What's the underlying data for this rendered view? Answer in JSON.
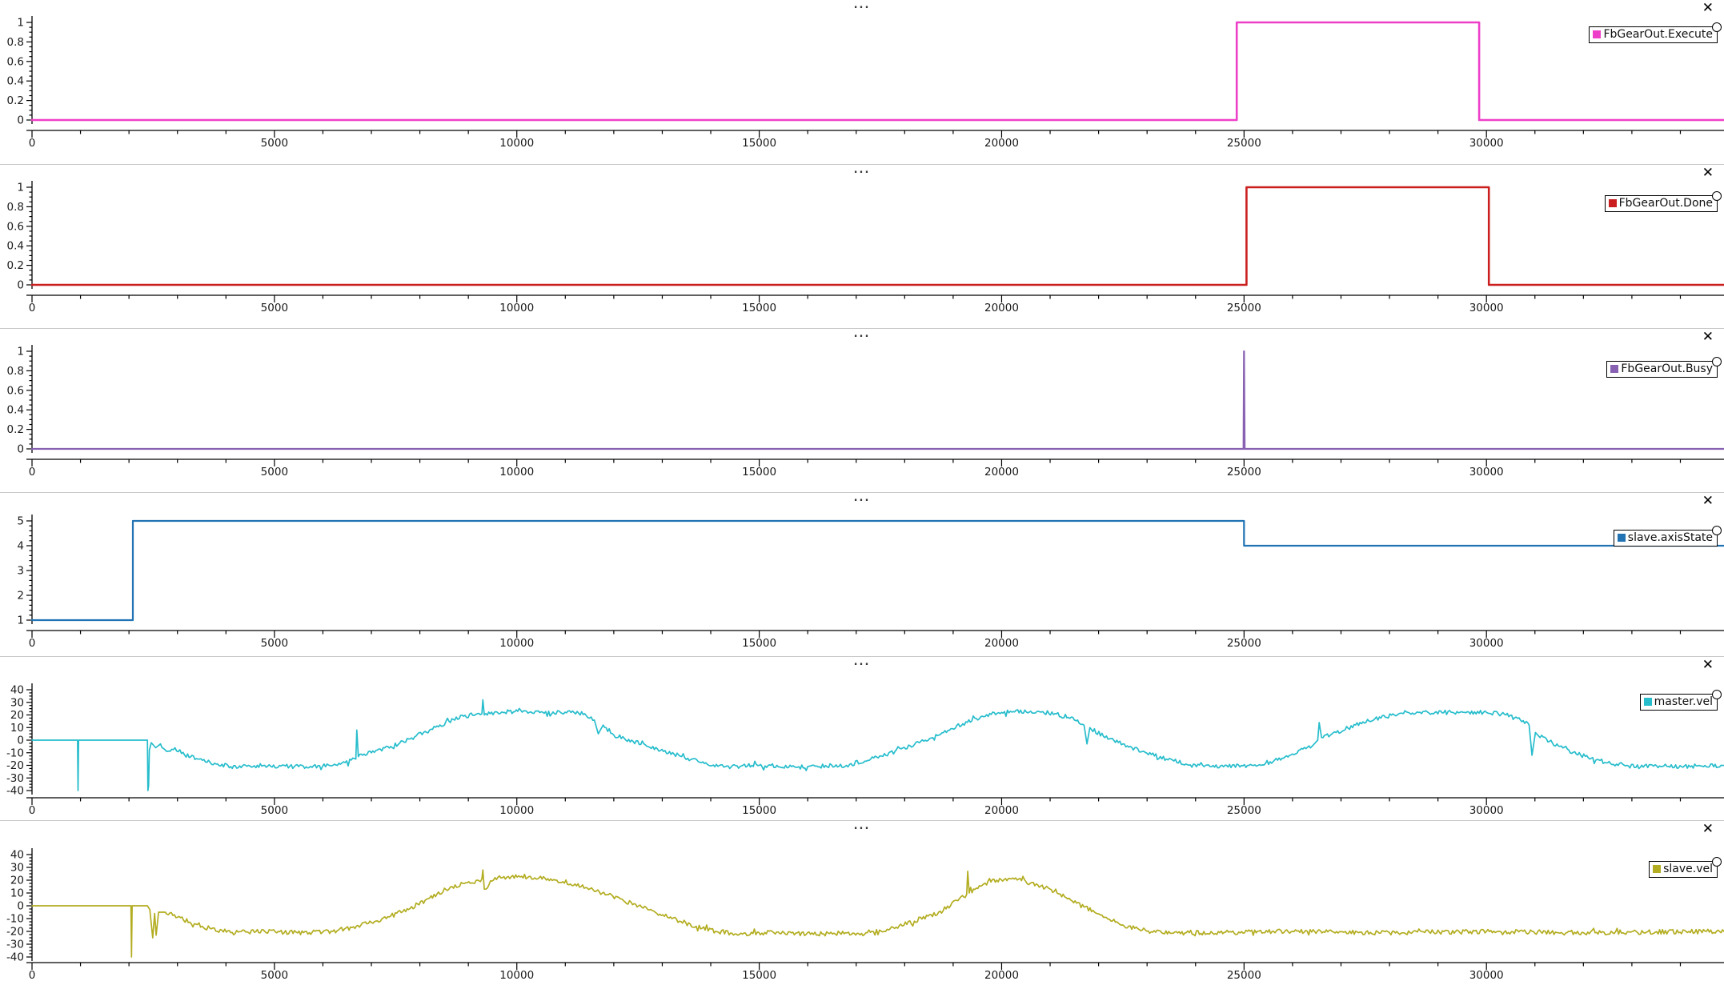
{
  "ui": {
    "handle": "...",
    "close": "✕"
  },
  "x_axis": {
    "range": [
      0,
      34900
    ],
    "major_step": 5000,
    "minor_step": 1000,
    "labels": [
      "0",
      "5000",
      "10000",
      "15000",
      "20000",
      "25000",
      "30000"
    ]
  },
  "chart_data": [
    {
      "type": "line",
      "legend": "FbGearOut.Execute",
      "color": "#EE3FC8",
      "xlim": [
        0,
        34900
      ],
      "ylim": [
        0,
        1
      ],
      "grid": false,
      "legend_position": "right",
      "y_axis": {
        "major_step": 0.2,
        "minor_step": 0.05,
        "labels_top_down": [
          "1",
          "0.8",
          "0.6",
          "0.4",
          "0.2",
          "0"
        ]
      },
      "keypoints": [
        [
          0,
          0
        ],
        [
          24850,
          0
        ],
        [
          24850,
          1
        ],
        [
          29850,
          1
        ],
        [
          29850,
          0
        ],
        [
          34900,
          0
        ]
      ],
      "noise": null
    },
    {
      "type": "line",
      "legend": "FbGearOut.Done",
      "color": "#CB1F1F",
      "xlim": [
        0,
        34900
      ],
      "ylim": [
        0,
        1
      ],
      "grid": false,
      "legend_position": "right",
      "y_axis": {
        "major_step": 0.2,
        "minor_step": 0.05,
        "labels_top_down": [
          "1",
          "0.8",
          "0.6",
          "0.4",
          "0.2",
          "0"
        ]
      },
      "keypoints": [
        [
          0,
          0
        ],
        [
          25050,
          0
        ],
        [
          25050,
          1
        ],
        [
          30050,
          1
        ],
        [
          30050,
          0
        ],
        [
          34900,
          0
        ]
      ],
      "noise": null
    },
    {
      "type": "line",
      "legend": "FbGearOut.Busy",
      "color": "#8961B3",
      "xlim": [
        0,
        34900
      ],
      "ylim": [
        0,
        1
      ],
      "grid": false,
      "legend_position": "right",
      "y_axis": {
        "major_step": 0.2,
        "minor_step": 0.05,
        "labels_top_down": [
          "1",
          "0.8",
          "0.6",
          "0.4",
          "0.2",
          "0"
        ]
      },
      "keypoints": [
        [
          0,
          0
        ],
        [
          24990,
          0
        ],
        [
          25000,
          1
        ],
        [
          25012,
          0
        ],
        [
          34900,
          0
        ]
      ],
      "noise": null
    },
    {
      "type": "line",
      "legend": "slave.axisState",
      "color": "#2173B4",
      "xlim": [
        0,
        34900
      ],
      "ylim": [
        1,
        5
      ],
      "grid": false,
      "legend_position": "right",
      "y_axis": {
        "major_step": 1,
        "minor_step": 0.2,
        "labels_top_down": [
          "5",
          "4",
          "3",
          "2",
          "1"
        ]
      },
      "keypoints": [
        [
          0,
          1
        ],
        [
          2080,
          1
        ],
        [
          2080,
          5
        ],
        [
          25000,
          5
        ],
        [
          25000,
          4
        ],
        [
          34900,
          4
        ]
      ],
      "noise": null
    },
    {
      "type": "line",
      "legend": "master.vel",
      "color": "#27BDCC",
      "xlim": [
        0,
        34900
      ],
      "ylim": [
        -40,
        40
      ],
      "grid": false,
      "legend_position": "right",
      "y_axis": {
        "major_step": 10,
        "minor_step": 2.5,
        "labels_top_down": [
          "40",
          "30",
          "20",
          "10",
          "0",
          "-10",
          "-20",
          "-30",
          "-40"
        ]
      },
      "keypoints": [
        [
          0,
          0
        ],
        [
          940,
          0
        ],
        [
          950,
          -40
        ],
        [
          960,
          0
        ],
        [
          2380,
          0
        ],
        [
          2390,
          -40
        ],
        [
          2405,
          -36
        ],
        [
          2420,
          -8
        ],
        [
          2460,
          -2
        ],
        [
          2550,
          -6
        ],
        [
          2650,
          -3
        ],
        [
          2780,
          -9
        ],
        [
          2950,
          -6
        ],
        [
          3150,
          -12
        ],
        [
          3450,
          -15
        ],
        [
          3800,
          -19
        ],
        [
          4100,
          -21
        ],
        [
          4800,
          -20
        ],
        [
          5500,
          -21
        ],
        [
          6300,
          -20
        ],
        [
          6680,
          -15
        ],
        [
          6700,
          8
        ],
        [
          6730,
          -13
        ],
        [
          7000,
          -10
        ],
        [
          7400,
          -5
        ],
        [
          7800,
          1
        ],
        [
          8200,
          8
        ],
        [
          8600,
          15
        ],
        [
          8900,
          19
        ],
        [
          9280,
          21
        ],
        [
          9300,
          32
        ],
        [
          9330,
          20
        ],
        [
          9600,
          22
        ],
        [
          10200,
          23
        ],
        [
          10900,
          22
        ],
        [
          11400,
          21
        ],
        [
          11600,
          16
        ],
        [
          11680,
          5
        ],
        [
          11780,
          12
        ],
        [
          12000,
          4
        ],
        [
          12400,
          -1
        ],
        [
          12900,
          -7
        ],
        [
          13400,
          -13
        ],
        [
          13900,
          -18
        ],
        [
          14300,
          -21
        ],
        [
          15000,
          -20
        ],
        [
          16000,
          -21
        ],
        [
          16800,
          -20
        ],
        [
          17300,
          -15
        ],
        [
          17800,
          -9
        ],
        [
          18300,
          -2
        ],
        [
          18800,
          6
        ],
        [
          19200,
          13
        ],
        [
          19600,
          19
        ],
        [
          20000,
          22
        ],
        [
          20600,
          23
        ],
        [
          21100,
          21
        ],
        [
          21500,
          16
        ],
        [
          21700,
          12
        ],
        [
          21760,
          -3
        ],
        [
          21820,
          10
        ],
        [
          22100,
          3
        ],
        [
          22500,
          -3
        ],
        [
          22900,
          -9
        ],
        [
          23400,
          -15
        ],
        [
          23800,
          -19
        ],
        [
          24300,
          -21
        ],
        [
          25100,
          -20
        ],
        [
          25600,
          -17
        ],
        [
          26000,
          -11
        ],
        [
          26400,
          -5
        ],
        [
          26520,
          0
        ],
        [
          26550,
          14
        ],
        [
          26600,
          2
        ],
        [
          26900,
          6
        ],
        [
          27300,
          12
        ],
        [
          27700,
          17
        ],
        [
          28100,
          20
        ],
        [
          28600,
          22
        ],
        [
          29300,
          22
        ],
        [
          30000,
          22
        ],
        [
          30400,
          20
        ],
        [
          30700,
          16
        ],
        [
          30880,
          12
        ],
        [
          30940,
          -12
        ],
        [
          31010,
          6
        ],
        [
          31300,
          -1
        ],
        [
          31700,
          -8
        ],
        [
          32100,
          -14
        ],
        [
          32500,
          -18
        ],
        [
          32900,
          -20
        ],
        [
          33600,
          -21
        ],
        [
          34900,
          -20
        ]
      ],
      "noise": {
        "start": 2600,
        "amp": 1.7
      }
    },
    {
      "type": "line",
      "legend": "slave.vel",
      "color": "#B3AD21",
      "xlim": [
        0,
        34900
      ],
      "ylim": [
        -40,
        40
      ],
      "grid": false,
      "legend_position": "right",
      "y_axis": {
        "major_step": 10,
        "minor_step": 2.5,
        "labels_top_down": [
          "40",
          "30",
          "20",
          "10",
          "0",
          "-10",
          "-20",
          "-30",
          "-40"
        ]
      },
      "keypoints": [
        [
          0,
          0
        ],
        [
          2040,
          0
        ],
        [
          2052,
          -40
        ],
        [
          2065,
          0
        ],
        [
          2380,
          0
        ],
        [
          2430,
          -3
        ],
        [
          2490,
          -25
        ],
        [
          2530,
          -6
        ],
        [
          2560,
          -23
        ],
        [
          2610,
          -5
        ],
        [
          2750,
          -5
        ],
        [
          3000,
          -9
        ],
        [
          3350,
          -14
        ],
        [
          3700,
          -18
        ],
        [
          4100,
          -21
        ],
        [
          4800,
          -20
        ],
        [
          5600,
          -21
        ],
        [
          6200,
          -20
        ],
        [
          6600,
          -17
        ],
        [
          7000,
          -13
        ],
        [
          7400,
          -8
        ],
        [
          7800,
          -2
        ],
        [
          8200,
          6
        ],
        [
          8600,
          13
        ],
        [
          8950,
          18
        ],
        [
          9280,
          21
        ],
        [
          9300,
          28
        ],
        [
          9330,
          13
        ],
        [
          9550,
          22
        ],
        [
          10100,
          23
        ],
        [
          10700,
          21
        ],
        [
          11200,
          17
        ],
        [
          11700,
          11
        ],
        [
          12200,
          4
        ],
        [
          12700,
          -3
        ],
        [
          13200,
          -10
        ],
        [
          13700,
          -16
        ],
        [
          14100,
          -20
        ],
        [
          14500,
          -22
        ],
        [
          15300,
          -21
        ],
        [
          16300,
          -22
        ],
        [
          17200,
          -21
        ],
        [
          17700,
          -18
        ],
        [
          18200,
          -12
        ],
        [
          18700,
          -5
        ],
        [
          19100,
          4
        ],
        [
          19280,
          9
        ],
        [
          19300,
          27
        ],
        [
          19330,
          10
        ],
        [
          19600,
          16
        ],
        [
          19900,
          20
        ],
        [
          20200,
          21
        ],
        [
          20500,
          19
        ],
        [
          20900,
          14
        ],
        [
          21300,
          7
        ],
        [
          21700,
          -1
        ],
        [
          22100,
          -9
        ],
        [
          22500,
          -15
        ],
        [
          22900,
          -19
        ],
        [
          23300,
          -21
        ],
        [
          24500,
          -21
        ],
        [
          26000,
          -20
        ],
        [
          28000,
          -21
        ],
        [
          30000,
          -20
        ],
        [
          32000,
          -21
        ],
        [
          34900,
          -20
        ]
      ],
      "noise": {
        "start": 2700,
        "amp": 1.8
      }
    }
  ]
}
